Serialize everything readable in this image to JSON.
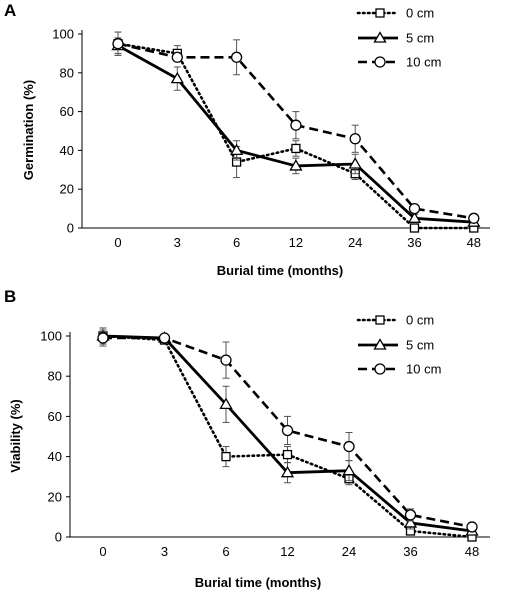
{
  "chart_data": [
    {
      "panel": "A",
      "type": "line",
      "x": [
        "0",
        "3",
        "6",
        "12",
        "24",
        "36",
        "48"
      ],
      "xlabel": "Burial time (months)",
      "ylabel": "Germination (%)",
      "ylim": [
        0,
        100
      ],
      "yticks": [
        0,
        20,
        40,
        60,
        80,
        100
      ],
      "legend": "top-right",
      "grid": false,
      "series": [
        {
          "name": "0 cm",
          "values": [
            95,
            90,
            34,
            41,
            28,
            0,
            0
          ],
          "errors": [
            6,
            4,
            8,
            4,
            3,
            0,
            0
          ],
          "marker": "square",
          "line": "dotted"
        },
        {
          "name": "5 cm",
          "values": [
            94,
            77,
            40,
            32,
            33,
            5,
            3
          ],
          "errors": [
            4,
            6,
            5,
            4,
            5,
            2,
            1
          ],
          "marker": "triangle",
          "line": "solid"
        },
        {
          "name": "10 cm",
          "values": [
            95,
            88,
            88,
            53,
            46,
            10,
            5
          ],
          "errors": [
            6,
            2,
            9,
            7,
            7,
            2,
            1
          ],
          "marker": "circle",
          "line": "dashed"
        }
      ]
    },
    {
      "panel": "B",
      "type": "line",
      "x": [
        "0",
        "3",
        "6",
        "12",
        "24",
        "36",
        "48"
      ],
      "xlabel": "Burial time (months)",
      "ylabel": "Viability (%)",
      "ylim": [
        0,
        100
      ],
      "yticks": [
        0,
        20,
        40,
        60,
        80,
        100
      ],
      "legend": "top-right",
      "grid": false,
      "series": [
        {
          "name": "0 cm",
          "values": [
            100,
            98,
            40,
            41,
            29,
            3,
            0
          ],
          "errors": [
            4,
            2,
            5,
            4,
            3,
            1,
            0
          ],
          "marker": "square",
          "line": "dotted"
        },
        {
          "name": "5 cm",
          "values": [
            100,
            99,
            66,
            32,
            33,
            7,
            3
          ],
          "errors": [
            4,
            1,
            9,
            5,
            5,
            3,
            1
          ],
          "marker": "triangle",
          "line": "solid"
        },
        {
          "name": "10 cm",
          "values": [
            99,
            99,
            88,
            53,
            45,
            11,
            5
          ],
          "errors": [
            4,
            1,
            9,
            7,
            7,
            3,
            1
          ],
          "marker": "circle",
          "line": "dashed"
        }
      ]
    }
  ]
}
